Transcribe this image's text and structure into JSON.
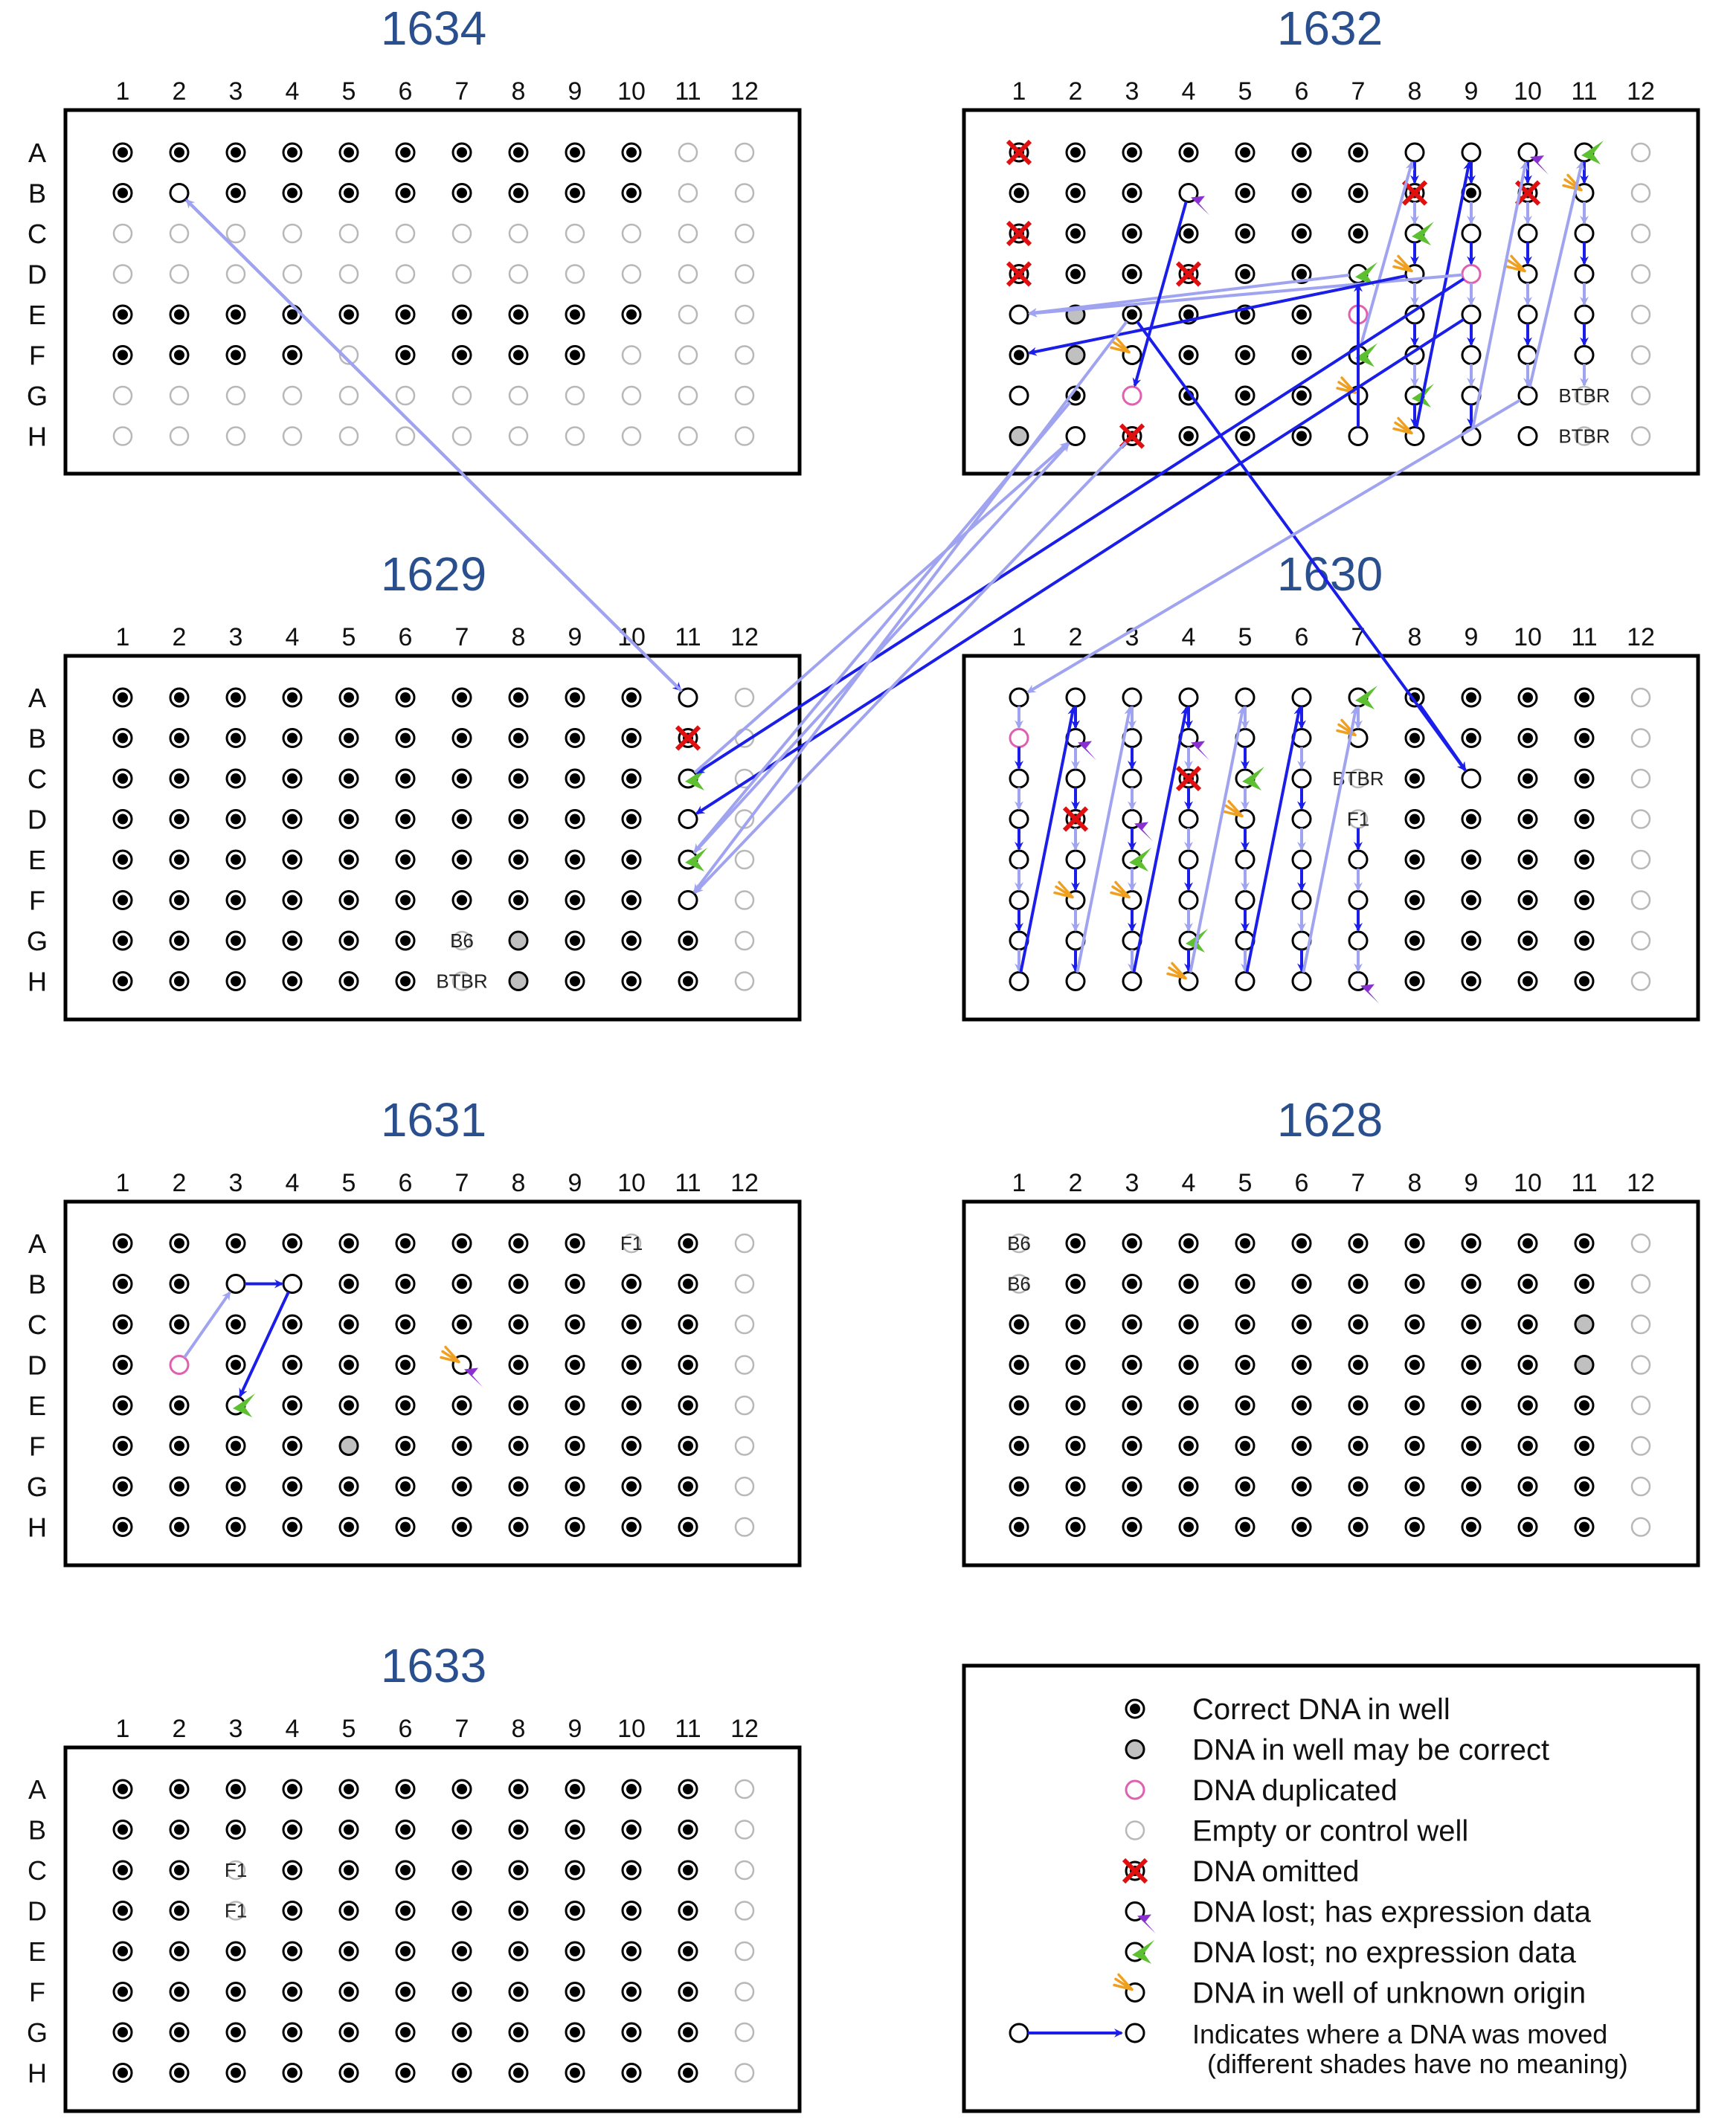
{
  "rows": [
    "A",
    "B",
    "C",
    "D",
    "E",
    "F",
    "G",
    "H"
  ],
  "cols": [
    "1",
    "2",
    "3",
    "4",
    "5",
    "6",
    "7",
    "8",
    "9",
    "10",
    "11",
    "12"
  ],
  "colors": {
    "dark_blue": "#1a1ee8",
    "light_blue": "#a0a4f0",
    "title_blue": "#2a4f8e",
    "omit_red": "#e01010",
    "dup_pink": "#e060b0",
    "maybe_gray": "#c0c0c0",
    "empty_gray": "#b8b8b8",
    "purple": "#8a30d0",
    "green": "#5cc030",
    "orange": "#f0a020"
  },
  "plates": [
    {
      "title": "1634",
      "default": "C",
      "wells": {
        "A11": "E",
        "A12": "E",
        "B11": "E",
        "B12": "E",
        "B2": "O",
        "C1": "E",
        "C2": "E",
        "C3": "E",
        "C4": "E",
        "C5": "E",
        "C6": "E",
        "C7": "E",
        "C8": "E",
        "C9": "E",
        "C10": "E",
        "C11": "E",
        "C12": "E",
        "D1": "E",
        "D2": "E",
        "D3": "E",
        "D4": "E",
        "D5": "E",
        "D6": "E",
        "D7": "E",
        "D8": "E",
        "D9": "E",
        "D10": "E",
        "D11": "E",
        "D12": "E",
        "E11": "E",
        "E12": "E",
        "F5": "E",
        "F10": "E",
        "F11": "E",
        "F12": "E",
        "G1": "E",
        "G2": "E",
        "G3": "E",
        "G4": "E",
        "G5": "E",
        "G6": "E",
        "G7": "E",
        "G8": "E",
        "G9": "E",
        "G10": "E",
        "G11": "E",
        "G12": "E",
        "H1": "E",
        "H2": "E",
        "H3": "E",
        "H4": "E",
        "H5": "E",
        "H6": "E",
        "H7": "E",
        "H8": "E",
        "H9": "E",
        "H10": "E",
        "H11": "E",
        "H12": "E"
      },
      "labels": {},
      "marks": {}
    },
    {
      "title": "1632",
      "default": "C",
      "wells": {
        "A1": "X",
        "A8": "O",
        "A9": "O",
        "A10": "O",
        "A11": "O",
        "A12": "E",
        "B4": "O",
        "B8": "X",
        "B10": "X",
        "B11": "O",
        "B12": "E",
        "C1": "X",
        "C8": "O",
        "C9": "O",
        "C10": "O",
        "C11": "O",
        "C12": "E",
        "D1": "X",
        "D4": "X",
        "D7": "O",
        "D8": "O",
        "D9": "P",
        "D10": "O",
        "D11": "O",
        "D12": "E",
        "E1": "O",
        "E2": "G",
        "E7": "P",
        "E8": "O",
        "E9": "O",
        "E10": "O",
        "E11": "O",
        "E12": "E",
        "F2": "G",
        "F3": "O",
        "F7": "O",
        "F8": "O",
        "F9": "O",
        "F10": "O",
        "F11": "O",
        "F12": "E",
        "G1": "O",
        "G3": "P",
        "G7": "O",
        "G8": "O",
        "G9": "O",
        "G10": "O",
        "G11": "E",
        "G12": "E",
        "H1": "G",
        "H2": "O",
        "H3": "X",
        "H7": "O",
        "H8": "O",
        "H9": "O",
        "H10": "O",
        "H11": "E",
        "H12": "E"
      },
      "labels": {
        "G11": "BTBR",
        "H11": "BTBR"
      },
      "marks": {
        "A10": "purple",
        "A11": "green",
        "B11": "orange",
        "B4": "purple",
        "C8": "green",
        "D7": "green",
        "D8": "orange",
        "D10": "orange",
        "F3": "orange",
        "F7": "green",
        "G7": "orange",
        "G8": "green",
        "H8": "orange"
      }
    },
    {
      "title": "1629",
      "default": "C",
      "wells": {
        "A11": "O",
        "A12": "E",
        "B11": "X",
        "B12": "E",
        "C11": "O",
        "C12": "E",
        "D11": "O",
        "D12": "E",
        "E11": "O",
        "E12": "E",
        "F11": "O",
        "F12": "E",
        "G12": "E",
        "H12": "E",
        "G7": "E",
        "H7": "E",
        "G8": "G",
        "H8": "G"
      },
      "labels": {
        "G7": "B6",
        "H7": "BTBR"
      },
      "marks": {
        "C11": "green",
        "E11": "green"
      }
    },
    {
      "title": "1630",
      "default": "C",
      "wells": {
        "A1": "O",
        "B1": "P",
        "C1": "O",
        "D1": "O",
        "E1": "O",
        "F1": "O",
        "G1": "O",
        "H1": "O",
        "A2": "O",
        "B2": "O",
        "C2": "O",
        "D2": "X",
        "E2": "O",
        "F2": "O",
        "G2": "O",
        "H2": "O",
        "A3": "O",
        "B3": "O",
        "C3": "O",
        "D3": "O",
        "E3": "O",
        "F3": "O",
        "G3": "O",
        "H3": "O",
        "A4": "O",
        "B4": "O",
        "C4": "X",
        "D4": "O",
        "E4": "O",
        "F4": "O",
        "G4": "O",
        "H4": "O",
        "A5": "O",
        "B5": "O",
        "C5": "O",
        "D5": "O",
        "E5": "O",
        "F5": "O",
        "G5": "O",
        "H5": "O",
        "A6": "O",
        "B6": "O",
        "C6": "O",
        "D6": "O",
        "E6": "O",
        "F6": "O",
        "G6": "O",
        "H6": "O",
        "A7": "O",
        "B7": "O",
        "C7": "E",
        "D7": "E",
        "E7": "O",
        "F7": "O",
        "G7": "O",
        "H7": "O",
        "C9": "O",
        "A12": "E",
        "B12": "E",
        "C12": "E",
        "D12": "E",
        "E12": "E",
        "F12": "E",
        "G12": "E",
        "H12": "E"
      },
      "labels": {
        "C7": "BTBR",
        "D7": "F1"
      },
      "marks": {
        "B2": "purple",
        "B4": "purple",
        "D3": "purple",
        "H7": "purple",
        "A7": "green",
        "C5": "green",
        "E3": "green",
        "G4": "green",
        "B7": "orange",
        "D5": "orange",
        "F2": "orange",
        "F3": "orange",
        "H4": "orange"
      }
    },
    {
      "title": "1631",
      "default": "C",
      "wells": {
        "A10": "E",
        "B3": "O",
        "B4": "O",
        "D2": "P",
        "D7": "O",
        "E3": "O",
        "F5": "G",
        "A12": "E",
        "B12": "E",
        "C12": "E",
        "D12": "E",
        "E12": "E",
        "F12": "E",
        "G12": "E",
        "H12": "E"
      },
      "labels": {
        "A10": "F1"
      },
      "marks": {
        "D7": "purple",
        "E3": "green",
        "D7b": "orange"
      }
    },
    {
      "title": "1628",
      "default": "C",
      "wells": {
        "A1": "E",
        "B1": "E",
        "C11": "G",
        "D11": "G",
        "A12": "E",
        "B12": "E",
        "C12": "E",
        "D12": "E",
        "E12": "E",
        "F12": "E",
        "G12": "E",
        "H12": "E"
      },
      "labels": {
        "A1": "B6",
        "B1": "B6"
      },
      "marks": {}
    },
    {
      "title": "1633",
      "default": "C",
      "wells": {
        "C3": "E",
        "D3": "E",
        "A12": "E",
        "B12": "E",
        "C12": "E",
        "D12": "E",
        "E12": "E",
        "F12": "E",
        "G12": "E",
        "H12": "E"
      },
      "labels": {
        "C3": "F1",
        "D3": "F1"
      },
      "marks": {}
    }
  ],
  "legend": {
    "items": [
      {
        "symbol": "C",
        "text": "Correct DNA in well"
      },
      {
        "symbol": "G",
        "text": "DNA in well may be correct"
      },
      {
        "symbol": "P",
        "text": "DNA duplicated"
      },
      {
        "symbol": "E",
        "text": "Empty or control well"
      },
      {
        "symbol": "X",
        "text": "DNA omitted"
      },
      {
        "symbol": "purple",
        "text": "DNA lost; has expression data"
      },
      {
        "symbol": "green",
        "text": "DNA lost; no expression data"
      },
      {
        "symbol": "orange",
        "text": "DNA in well of unknown origin"
      },
      {
        "symbol": "arrow",
        "text": "Indicates where a DNA was moved"
      }
    ],
    "note": "(different shades have no meaning)"
  }
}
